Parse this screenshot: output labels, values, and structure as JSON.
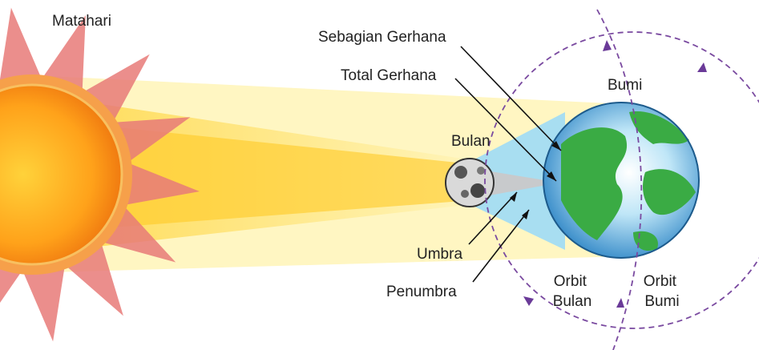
{
  "labels": {
    "sun": "Matahari",
    "partial": "Sebagian Gerhana",
    "total": "Total Gerhana",
    "earth": "Bumi",
    "moon": "Bulan",
    "umbra": "Umbra",
    "penumbra": "Penumbra",
    "moon_orbit": [
      "Orbit",
      "Bulan"
    ],
    "earth_orbit": [
      "Orbit",
      "Bumi"
    ]
  }
}
